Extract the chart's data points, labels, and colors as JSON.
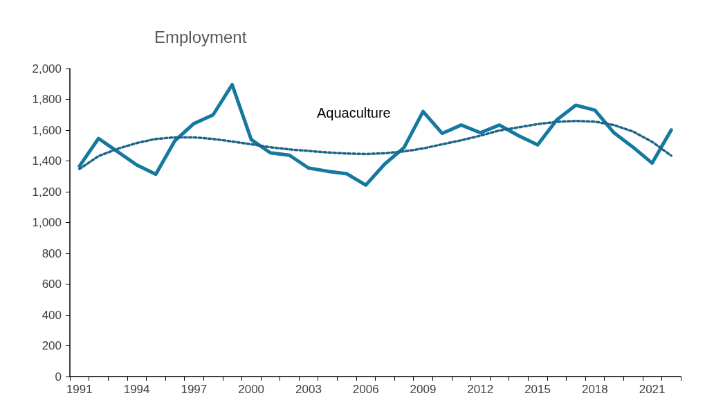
{
  "chart_data": {
    "type": "line",
    "title": "Employment",
    "categories": [
      "1991",
      null,
      null,
      "1994",
      null,
      null,
      "1997",
      null,
      null,
      "2000",
      null,
      null,
      "2003",
      null,
      null,
      "2006",
      null,
      null,
      "2009",
      null,
      null,
      "2012",
      null,
      null,
      "2015",
      null,
      null,
      "2018",
      null,
      null,
      "2021",
      null
    ],
    "series": [
      {
        "name": "Aquaculture",
        "color": "#15789f",
        "line_style": "solid",
        "values": [
          1366,
          1546,
          1460,
          1374,
          1314,
          1531,
          1643,
          1699,
          1895,
          1539,
          1453,
          1437,
          1354,
          1333,
          1317,
          1243,
          1381,
          1486,
          1721,
          1579,
          1633,
          1583,
          1633,
          1564,
          1504,
          1666,
          1762,
          1730,
          1583,
          1489,
          1386,
          1601
        ]
      },
      {
        "type": "line",
        "color": "#1d6488",
        "line_style": "dotted",
        "values": [
          1348,
          1431,
          1479,
          1516,
          1543,
          1553,
          1553,
          1543,
          1526,
          1508,
          1489,
          1475,
          1465,
          1455,
          1448,
          1445,
          1450,
          1462,
          1481,
          1508,
          1534,
          1564,
          1598,
          1618,
          1639,
          1654,
          1660,
          1655,
          1633,
          1591,
          1524,
          1434
        ]
      }
    ],
    "ylim": [
      0,
      2000
    ],
    "yticks": [
      0,
      200,
      400,
      600,
      800,
      {
        "value": 1000,
        "label": "1,000"
      },
      {
        "value": 1200,
        "label": "1,200"
      },
      {
        "value": 1400,
        "label": "1,400"
      },
      {
        "value": 1600,
        "label": "1,600"
      },
      {
        "value": 1800,
        "label": "1,800"
      },
      {
        "value": 2000,
        "label": "2,000"
      }
    ],
    "grid": false,
    "legend": false,
    "marker": "none"
  }
}
